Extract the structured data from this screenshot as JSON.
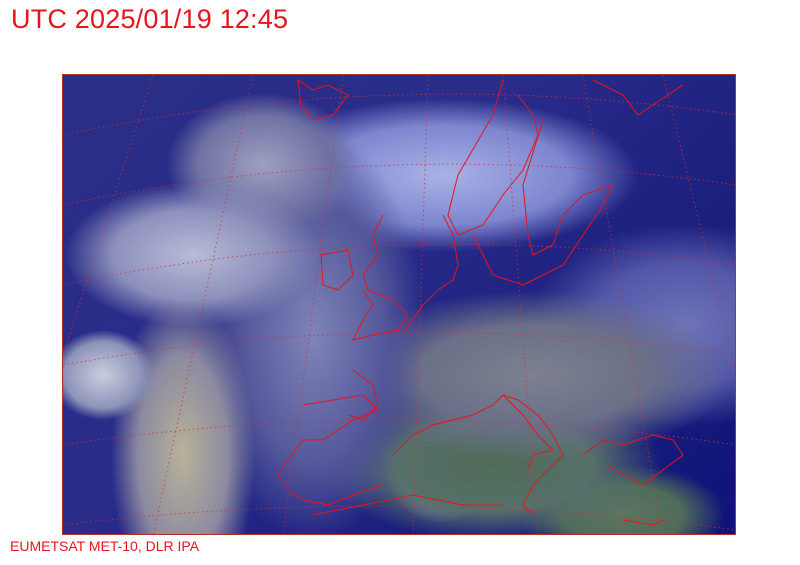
{
  "header": {
    "title": "UTC 2025/01/19 12:45"
  },
  "footer": {
    "credit": "EUMETSAT MET-10, DLR IPA"
  },
  "map": {
    "overlay_color": "#e8141c",
    "grid_style": "dotted",
    "content": "satellite-imagery"
  }
}
